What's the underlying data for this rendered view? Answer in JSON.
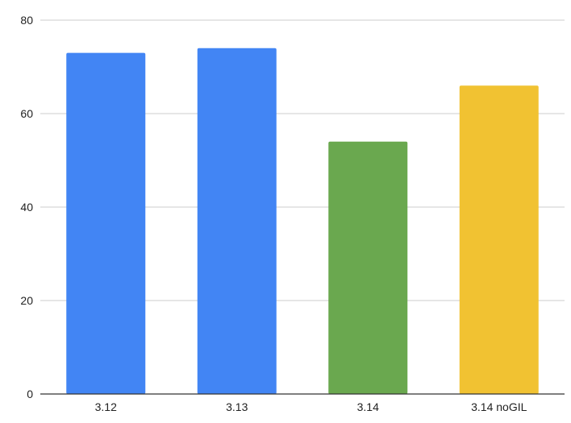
{
  "chart_data": {
    "type": "bar",
    "categories": [
      "3.12",
      "3.13",
      "3.14",
      "3.14 noGIL"
    ],
    "values": [
      73,
      74,
      54,
      66
    ],
    "colors": [
      "#4285f4",
      "#4285f4",
      "#6aa84f",
      "#f1c232"
    ],
    "title": "",
    "xlabel": "",
    "ylabel": "",
    "ylim": [
      0,
      80
    ],
    "yticks": [
      0,
      20,
      40,
      60,
      80
    ],
    "grid": true,
    "legend": "none"
  }
}
